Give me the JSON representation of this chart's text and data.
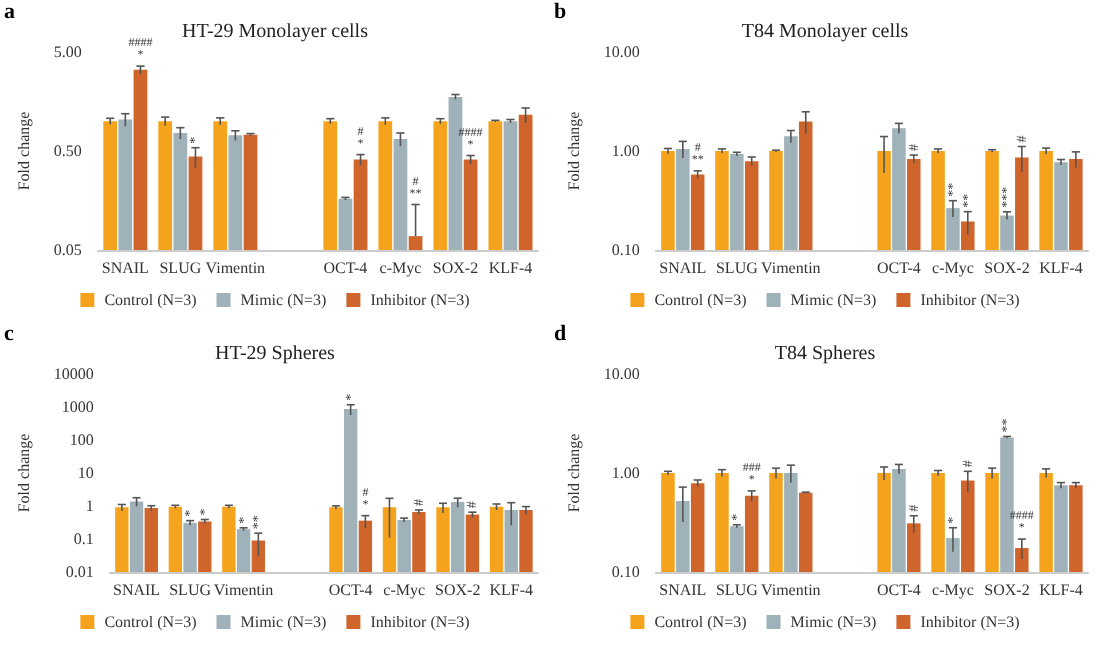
{
  "chart_data": [
    {
      "type": "bar",
      "title": "HT-29 Monolayer cells",
      "ylabel": "Fold change",
      "annotations": [
        "a"
      ],
      "log": "y",
      "grid": false,
      "legend": "bottom",
      "categories": [
        "SNAIL",
        "SLUG",
        "Vimentin",
        null,
        "OCT-4",
        "c-Myc",
        "SOX-2",
        "KLF-4"
      ],
      "ylim": [
        0.05,
        5
      ],
      "yticks": [
        0.05,
        {
          "value": 0.5,
          "label": "0.50"
        },
        {
          "value": 5,
          "label": "5.00"
        }
      ],
      "series": [
        {
          "name": "Control (N=3)",
          "color": "#f5a21c",
          "values": [
            1.0,
            1.0,
            1.0,
            null,
            1.0,
            1.0,
            1.0,
            1.0
          ],
          "errors": [
            0.07,
            0.1,
            0.08,
            null,
            0.06,
            0.08,
            0.06,
            0.02
          ]
        },
        {
          "name": "Mimic (N=3)",
          "color": "#9fb1b9",
          "values": [
            1.04,
            0.76,
            0.72,
            null,
            0.165,
            0.66,
            1.76,
            1.0
          ],
          "errors": [
            0.15,
            0.1,
            0.08,
            null,
            0.005,
            0.1,
            0.1,
            0.04
          ]
        },
        {
          "name": "Inhibitor (N=3)",
          "color": "#d0652c",
          "values": [
            3.3,
            0.44,
            0.73,
            null,
            0.41,
            0.069,
            0.41,
            1.16
          ],
          "errors": [
            0.3,
            0.1,
            0.02,
            null,
            0.05,
            [
              0.069,
              0.144
            ],
            0.04,
            0.2
          ],
          "value_labels": [
            "####\n*",
            "*",
            null,
            null,
            "#\n*",
            "#\n**",
            "####\n*",
            null
          ]
        }
      ]
    },
    {
      "type": "bar",
      "title": "T84 Monolayer cells",
      "ylabel": "Fold change",
      "annotations": [
        "b"
      ],
      "log": "y",
      "grid": false,
      "legend": "bottom",
      "categories": [
        "SNAIL",
        "SLUG",
        "Vimentin",
        null,
        "OCT-4",
        "c-Myc",
        "SOX-2",
        "KLF-4"
      ],
      "ylim": [
        0.1,
        10
      ],
      "yticks": [
        {
          "value": 0.1,
          "label": "0.10"
        },
        {
          "value": 1,
          "label": "1.00"
        },
        {
          "value": 10,
          "label": "10.00"
        }
      ],
      "series": [
        {
          "name": "Control (N=3)",
          "color": "#f5a21c",
          "values": [
            1.0,
            1.0,
            1.0,
            null,
            1.0,
            1.0,
            1.0,
            1.0
          ],
          "errors": [
            0.06,
            0.05,
            0.02,
            null,
            0.4,
            0.05,
            0.03,
            0.07
          ]
        },
        {
          "name": "Mimic (N=3)",
          "color": "#9fb1b9",
          "values": [
            1.05,
            0.93,
            1.41,
            null,
            1.7,
            0.265,
            0.223,
            0.77
          ],
          "errors": [
            0.2,
            0.04,
            0.2,
            null,
            0.2,
            0.05,
            0.02,
            0.05
          ],
          "value_labels": [
            null,
            null,
            null,
            null,
            null,
            "**",
            "***",
            null
          ]
        },
        {
          "name": "Inhibitor (N=3)",
          "color": "#d0652c",
          "values": [
            0.58,
            0.79,
            1.99,
            null,
            0.83,
            0.194,
            0.86,
            0.83
          ],
          "errors": [
            0.05,
            0.08,
            0.5,
            null,
            0.08,
            0.05,
            0.25,
            0.15
          ],
          "value_labels": [
            "#\n**",
            null,
            null,
            null,
            "#",
            "**",
            "#",
            null
          ]
        }
      ]
    },
    {
      "type": "bar",
      "title": "HT-29 Spheres",
      "ylabel": "Fold change",
      "annotations": [
        "c"
      ],
      "log": "y",
      "grid": false,
      "legend": "bottom",
      "categories": [
        "SNAIL",
        "SLUG",
        "Vimentin",
        null,
        "OCT-4",
        "c-Myc",
        "SOX-2",
        "KLF-4"
      ],
      "ylim": [
        0.01,
        10000
      ],
      "yticks": [
        0.01,
        0.1,
        1,
        10,
        100,
        1000,
        10000
      ],
      "series": [
        {
          "name": "Control (N=3)",
          "color": "#f5a21c",
          "values": [
            0.91,
            0.95,
            0.95,
            null,
            0.91,
            0.91,
            0.91,
            0.95
          ],
          "errors": [
            0.2,
            0.1,
            0.1,
            null,
            0.1,
            0.8,
            0.3,
            0.2
          ]
        },
        {
          "name": "Mimic (N=3)",
          "color": "#9fb1b9",
          "values": [
            1.38,
            0.31,
            0.198,
            null,
            870,
            0.38,
            1.32,
            0.76
          ],
          "errors": [
            0.4,
            0.05,
            0.02,
            null,
            300,
            0.05,
            0.4,
            0.5
          ],
          "value_labels": [
            null,
            "*",
            "*",
            null,
            "*",
            null,
            null,
            null
          ]
        },
        {
          "name": "Inhibitor (N=3)",
          "color": "#d0652c",
          "values": [
            0.87,
            0.34,
            0.09,
            null,
            0.36,
            0.66,
            0.55,
            0.76
          ],
          "errors": [
            0.15,
            0.05,
            0.06,
            null,
            0.15,
            0.1,
            0.1,
            0.2
          ],
          "value_labels": [
            null,
            "*",
            "**",
            null,
            "#\n*",
            "#",
            "#",
            null
          ]
        }
      ]
    },
    {
      "type": "bar",
      "title": "T84 Spheres",
      "ylabel": "Fold change",
      "annotations": [
        "d"
      ],
      "log": "y",
      "grid": false,
      "legend": "bottom",
      "categories": [
        "SNAIL",
        "SLUG",
        "Vimentin",
        null,
        "OCT-4",
        "c-Myc",
        "SOX-2",
        "KLF-4"
      ],
      "ylim": [
        0.1,
        10
      ],
      "yticks": [
        {
          "value": 0.1,
          "label": "0.10"
        },
        {
          "value": 1,
          "label": "1.00"
        },
        {
          "value": 10,
          "label": "10.00"
        }
      ],
      "series": [
        {
          "name": "Control (N=3)",
          "color": "#f5a21c",
          "values": [
            1.0,
            1.0,
            1.0,
            null,
            1.0,
            1.0,
            1.0,
            1.0
          ],
          "errors": [
            0.04,
            0.08,
            0.12,
            null,
            0.15,
            0.06,
            0.12,
            0.1
          ]
        },
        {
          "name": "Mimic (N=3)",
          "color": "#9fb1b9",
          "values": [
            0.52,
            0.29,
            1.0,
            null,
            1.1,
            0.22,
            2.29,
            0.75
          ],
          "errors": [
            0.2,
            0.01,
            0.2,
            null,
            0.12,
            0.06,
            0.05,
            0.05
          ],
          "value_labels": [
            null,
            "*",
            null,
            null,
            null,
            "*",
            "**",
            null
          ]
        },
        {
          "name": "Inhibitor (N=3)",
          "color": "#d0652c",
          "values": [
            0.79,
            0.59,
            0.63,
            null,
            0.31,
            0.84,
            0.175,
            0.75
          ],
          "errors": [
            0.06,
            0.07,
            0.01,
            null,
            0.06,
            0.2,
            0.04,
            0.05
          ],
          "value_labels": [
            null,
            "###\n*",
            null,
            null,
            "#",
            "#",
            "####\n*",
            null
          ]
        }
      ]
    }
  ]
}
